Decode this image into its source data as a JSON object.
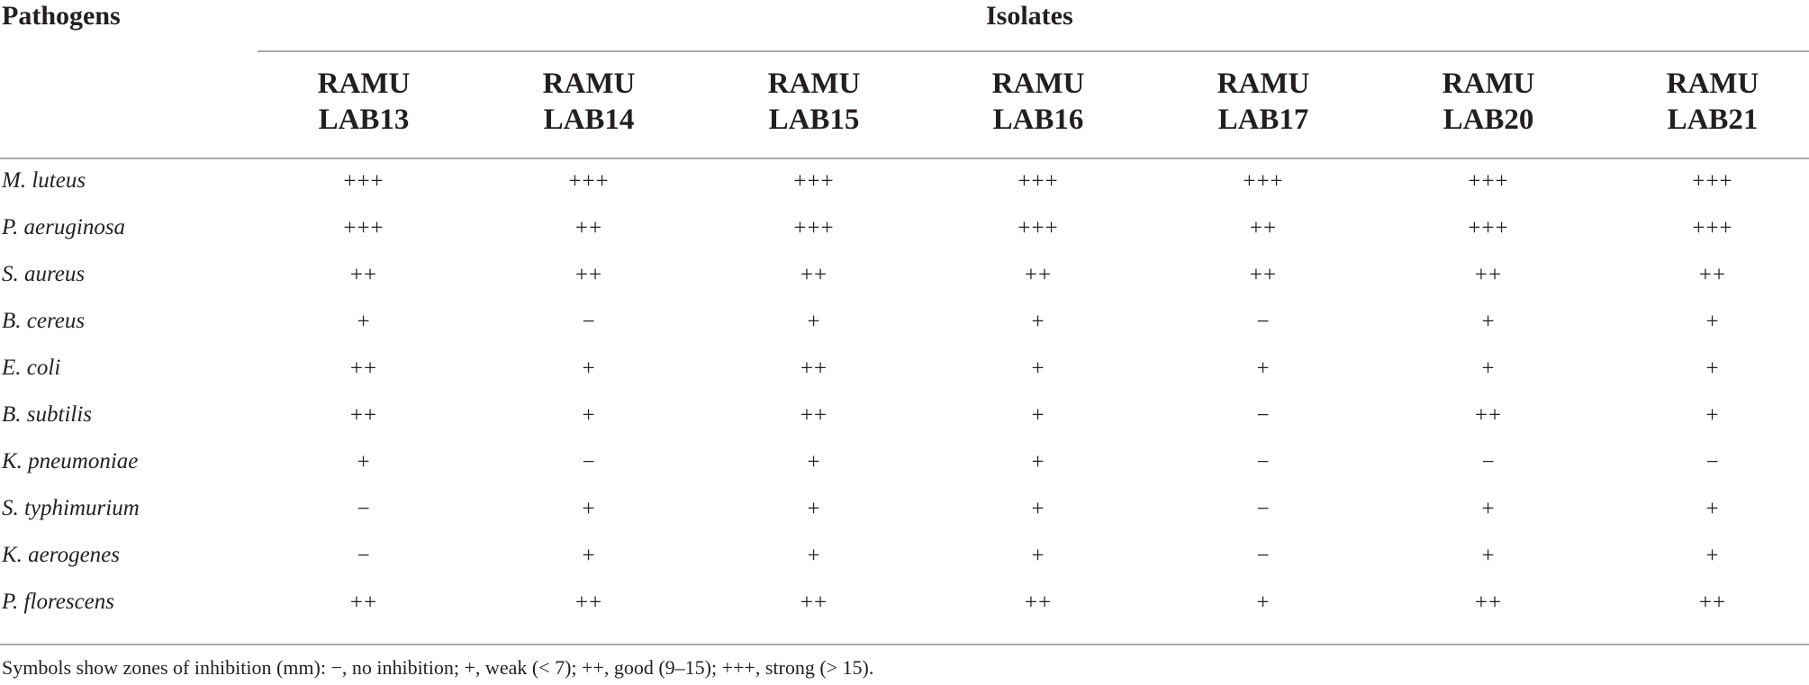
{
  "header": {
    "pathogens_label": "Pathogens",
    "isolates_label": "Isolates"
  },
  "columns": [
    {
      "line1": "RAMU",
      "line2": "LAB13"
    },
    {
      "line1": "RAMU",
      "line2": "LAB14"
    },
    {
      "line1": "RAMU",
      "line2": "LAB15"
    },
    {
      "line1": "RAMU",
      "line2": "LAB16"
    },
    {
      "line1": "RAMU",
      "line2": "LAB17"
    },
    {
      "line1": "RAMU",
      "line2": "LAB20"
    },
    {
      "line1": "RAMU",
      "line2": "LAB21"
    }
  ],
  "rows": [
    {
      "pathogen": "M. luteus",
      "values": [
        "+++",
        "+++",
        "+++",
        "+++",
        "+++",
        "+++",
        "+++"
      ]
    },
    {
      "pathogen": "P. aeruginosa",
      "values": [
        "+++",
        "++",
        "+++",
        "+++",
        "++",
        "+++",
        "+++"
      ]
    },
    {
      "pathogen": "S. aureus",
      "values": [
        "++",
        "++",
        "++",
        "++",
        "++",
        "++",
        "++"
      ]
    },
    {
      "pathogen": "B. cereus",
      "values": [
        "+",
        "−",
        "+",
        "+",
        "−",
        "+",
        "+"
      ]
    },
    {
      "pathogen": "E. coli",
      "values": [
        "++",
        "+",
        "++",
        "+",
        "+",
        "+",
        "+"
      ]
    },
    {
      "pathogen": "B. subtilis",
      "values": [
        "++",
        "+",
        "++",
        "+",
        "−",
        "++",
        "+"
      ]
    },
    {
      "pathogen": "K. pneumoniae",
      "values": [
        "+",
        "−",
        "+",
        "+",
        "−",
        "−",
        "−"
      ]
    },
    {
      "pathogen": "S. typhimurium",
      "values": [
        "−",
        "+",
        "+",
        "+",
        "−",
        "+",
        "+"
      ]
    },
    {
      "pathogen": "K. aerogenes",
      "values": [
        "−",
        "+",
        "+",
        "+",
        "−",
        "+",
        "+"
      ]
    },
    {
      "pathogen": "P. florescens",
      "values": [
        "++",
        "++",
        "++",
        "++",
        "+",
        "++",
        "++"
      ]
    }
  ],
  "footnote": "Symbols show zones of inhibition (mm): −, no inhibition; +, weak (< 7); ++, good (9–15); +++, strong (> 15)."
}
